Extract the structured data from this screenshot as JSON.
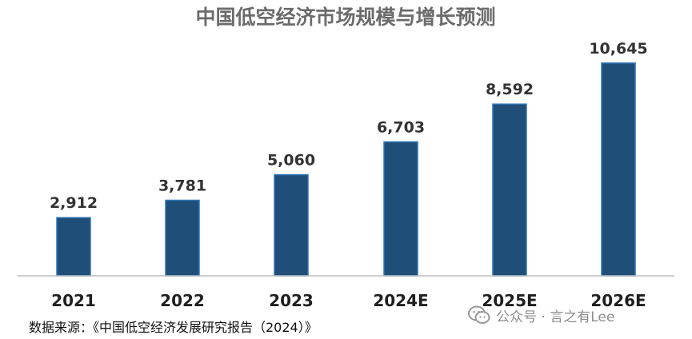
{
  "colors": {
    "bar": "#1f4e79",
    "bar_edge": "#2e75b6",
    "axis": "#bfbfbf",
    "title": "#6b6b6b"
  },
  "chart_data": {
    "type": "bar",
    "title": "中国低空经济市场规模与增长预测",
    "categories": [
      "2021",
      "2022",
      "2023",
      "2024E",
      "2025E",
      "2026E"
    ],
    "values": [
      2912,
      3781,
      5060,
      6703,
      8592,
      10645
    ],
    "value_labels": [
      "2,912",
      "3,781",
      "5,060",
      "6,703",
      "8,592",
      "10,645"
    ],
    "xlabel": "",
    "ylabel": "",
    "ylim": [
      0,
      11000
    ],
    "grid": false,
    "legend": "none"
  },
  "source_text": "数据来源：《中国低空经济发展研究报告（2024）》",
  "watermark": {
    "icon": "wechat-icon",
    "text": "公众号 · 言之有Lee"
  }
}
